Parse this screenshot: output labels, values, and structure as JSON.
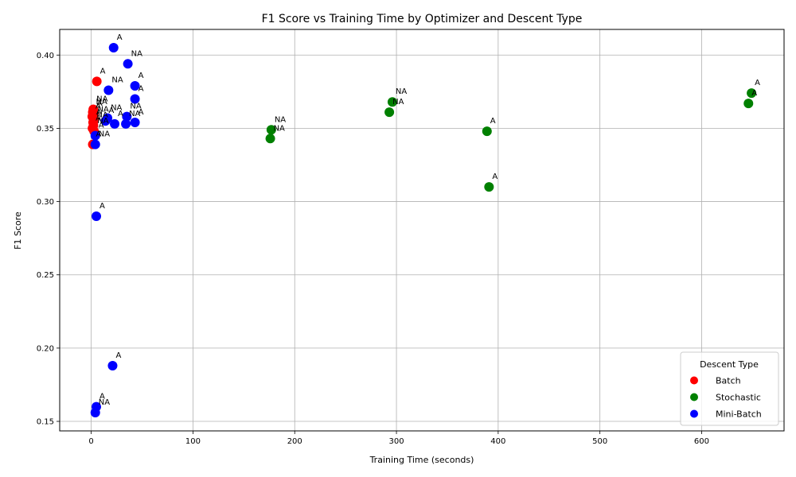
{
  "chart_data": {
    "type": "scatter",
    "title": "F1 Score vs Training Time by Optimizer and Descent Type",
    "xlabel": "Training Time (seconds)",
    "ylabel": "F1 Score",
    "xlim": [
      -31,
      681
    ],
    "ylim": [
      0.1435,
      0.4175
    ],
    "xticks": [
      0,
      100,
      200,
      300,
      400,
      500,
      600
    ],
    "yticks": [
      0.15,
      0.2,
      0.25,
      0.3,
      0.35,
      0.4
    ],
    "ytick_labels": [
      "0.15",
      "0.20",
      "0.25",
      "0.30",
      "0.35",
      "0.40"
    ],
    "grid": true,
    "legend": {
      "title": "Descent Type",
      "placement": "lower-right"
    },
    "series": [
      {
        "name": "Batch",
        "color": "#ff0000",
        "points": [
          {
            "x": 5.5,
            "y": 0.382,
            "label": "A"
          },
          {
            "x": 2.0,
            "y": 0.363,
            "label": "NA"
          },
          {
            "x": 1.5,
            "y": 0.361,
            "label": "NA"
          },
          {
            "x": 2.5,
            "y": 0.36,
            "label": "A"
          },
          {
            "x": 1.0,
            "y": 0.358,
            "label": "A"
          },
          {
            "x": 3.0,
            "y": 0.356,
            "label": "NA"
          },
          {
            "x": 1.8,
            "y": 0.354,
            "label": "A"
          },
          {
            "x": 2.2,
            "y": 0.352,
            "label": "NA"
          },
          {
            "x": 1.2,
            "y": 0.35,
            "label": "A"
          },
          {
            "x": 2.8,
            "y": 0.348,
            "label": "NA"
          },
          {
            "x": 1.5,
            "y": 0.339,
            "label": "A"
          }
        ]
      },
      {
        "name": "Stochastic",
        "color": "#008000",
        "points": [
          {
            "x": 649,
            "y": 0.374,
            "label": "A"
          },
          {
            "x": 646,
            "y": 0.367,
            "label": "A"
          },
          {
            "x": 296,
            "y": 0.368,
            "label": "NA"
          },
          {
            "x": 293,
            "y": 0.361,
            "label": "NA"
          },
          {
            "x": 389,
            "y": 0.348,
            "label": "A"
          },
          {
            "x": 391,
            "y": 0.31,
            "label": "A"
          },
          {
            "x": 177,
            "y": 0.349,
            "label": "NA"
          },
          {
            "x": 176,
            "y": 0.343,
            "label": "NA"
          }
        ]
      },
      {
        "name": "Mini-Batch",
        "color": "#0000ff",
        "points": [
          {
            "x": 22,
            "y": 0.405,
            "label": "A"
          },
          {
            "x": 36,
            "y": 0.394,
            "label": "NA"
          },
          {
            "x": 43,
            "y": 0.379,
            "label": "A"
          },
          {
            "x": 17,
            "y": 0.376,
            "label": "NA"
          },
          {
            "x": 43,
            "y": 0.37,
            "label": "A"
          },
          {
            "x": 16,
            "y": 0.357,
            "label": "NA"
          },
          {
            "x": 35,
            "y": 0.358,
            "label": "NA"
          },
          {
            "x": 43,
            "y": 0.354,
            "label": "A"
          },
          {
            "x": 23,
            "y": 0.353,
            "label": "A"
          },
          {
            "x": 34,
            "y": 0.353,
            "label": "NA"
          },
          {
            "x": 14,
            "y": 0.355,
            "label": "A"
          },
          {
            "x": 4,
            "y": 0.345,
            "label": "A"
          },
          {
            "x": 4,
            "y": 0.339,
            "label": "NA"
          },
          {
            "x": 5,
            "y": 0.29,
            "label": "A"
          },
          {
            "x": 21,
            "y": 0.188,
            "label": "A"
          },
          {
            "x": 5,
            "y": 0.16,
            "label": "A"
          },
          {
            "x": 4,
            "y": 0.156,
            "label": "NA"
          }
        ]
      }
    ]
  }
}
